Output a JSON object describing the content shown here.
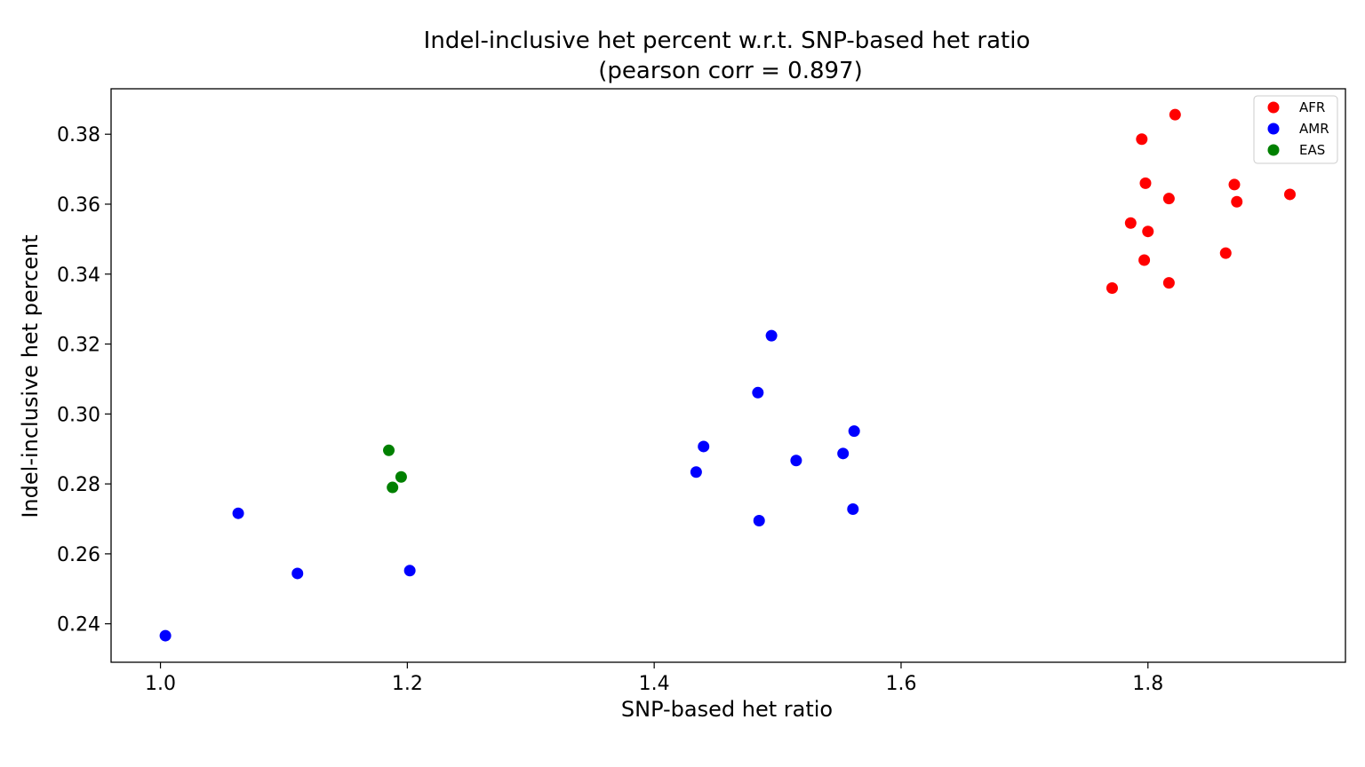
{
  "chart_data": {
    "type": "scatter",
    "title": "Indel-inclusive het percent w.r.t. SNP-based het ratio",
    "subtitle": "(pearson corr = 0.897)",
    "xlabel": "SNP-based het ratio",
    "ylabel": "Indel-inclusive het percent",
    "xlim": [
      0.96,
      1.96
    ],
    "ylim": [
      0.229,
      0.393
    ],
    "xticks": [
      1.0,
      1.2,
      1.4,
      1.6,
      1.8
    ],
    "xtick_labels": [
      "1.0",
      "1.2",
      "1.4",
      "1.6",
      "1.8"
    ],
    "yticks": [
      0.24,
      0.26,
      0.28,
      0.3,
      0.32,
      0.34,
      0.36,
      0.38
    ],
    "ytick_labels": [
      "0.24",
      "0.26",
      "0.28",
      "0.30",
      "0.32",
      "0.34",
      "0.36",
      "0.38"
    ],
    "grid": false,
    "legend_position": "top-right",
    "series": [
      {
        "name": "AFR",
        "color": "#ff0000",
        "points": [
          [
            1.822,
            0.3856
          ],
          [
            1.795,
            0.3786
          ],
          [
            1.798,
            0.366
          ],
          [
            1.87,
            0.3656
          ],
          [
            1.915,
            0.3628
          ],
          [
            1.817,
            0.3616
          ],
          [
            1.872,
            0.3607
          ],
          [
            1.786,
            0.3546
          ],
          [
            1.8,
            0.3522
          ],
          [
            1.863,
            0.346
          ],
          [
            1.797,
            0.344
          ],
          [
            1.817,
            0.3375
          ],
          [
            1.771,
            0.336
          ]
        ]
      },
      {
        "name": "AMR",
        "color": "#0000ff",
        "points": [
          [
            1.495,
            0.3224
          ],
          [
            1.484,
            0.3061
          ],
          [
            1.562,
            0.2951
          ],
          [
            1.44,
            0.2907
          ],
          [
            1.553,
            0.2887
          ],
          [
            1.515,
            0.2867
          ],
          [
            1.434,
            0.2834
          ],
          [
            1.561,
            0.2728
          ],
          [
            1.485,
            0.2695
          ],
          [
            1.063,
            0.2716
          ],
          [
            1.111,
            0.2544
          ],
          [
            1.202,
            0.2552
          ],
          [
            1.004,
            0.2366
          ]
        ]
      },
      {
        "name": "EAS",
        "color": "#008000",
        "points": [
          [
            1.185,
            0.2896
          ],
          [
            1.195,
            0.282
          ],
          [
            1.188,
            0.279
          ]
        ]
      }
    ]
  }
}
